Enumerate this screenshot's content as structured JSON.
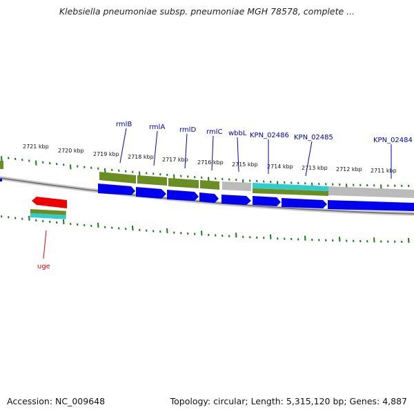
{
  "title": "Klebsiella pneumoniae subsp. pneumoniae MGH 78578, complete ...",
  "footer": {
    "accession": "Accession: NC_009648",
    "topology": "Topology: circular; Length: 5,315,120 bp; Genes: 4,887"
  },
  "colors": {
    "cds": "#0000ee",
    "gene": "#6b8e23",
    "trna": "#33cccc",
    "highlight": "#ee0000",
    "grey": "#bbbbbb",
    "ticks": "#1a7a1a",
    "gene_label": "#0000aa",
    "highlight_label": "#dd0000"
  },
  "kbp_labels": [
    "2721 kbp",
    "2720 kbp",
    "2719 kbp",
    "2718 kbp",
    "2717 kbp",
    "2716 kbp",
    "2715 kbp",
    "2714 kbp",
    "2713 kbp",
    "2712 kbp",
    "2711 kbp"
  ],
  "gene_labels": [
    "rmlB",
    "rmlA",
    "rmlD",
    "rmlC",
    "wbbL",
    "KPN_02486",
    "KPN_02485",
    "KPN_02484"
  ],
  "highlight_label": "uge"
}
